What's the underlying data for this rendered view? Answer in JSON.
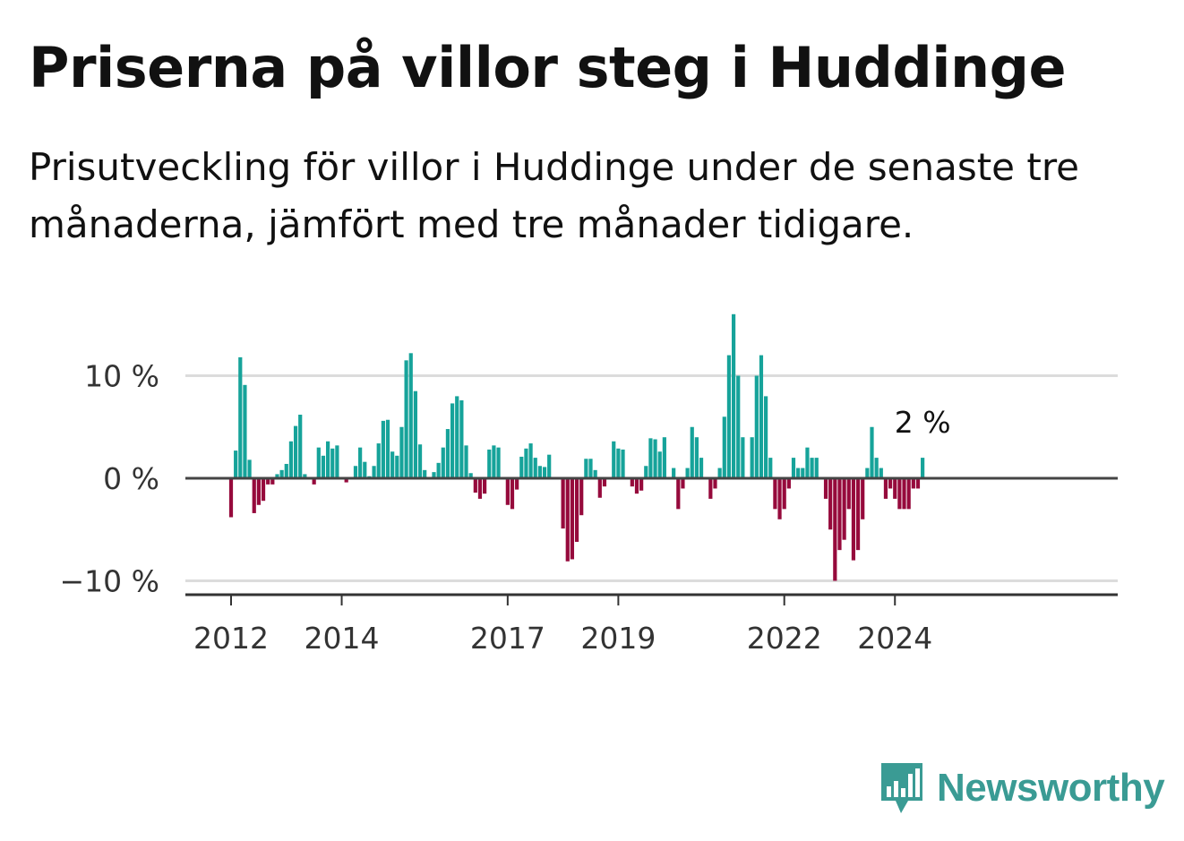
{
  "title": "Priserna på villor steg i Huddinge",
  "subtitle": "Prisutveckling för villor i Huddinge under de senaste tre månaderna, jämfört med tre månader tidigare.",
  "brand": {
    "name": "Newsworthy",
    "icon": "bar-chart-speech-bubble-icon",
    "color": "#3a9b94"
  },
  "chart_data": {
    "type": "bar",
    "unit": "%",
    "x_range": [
      "2012-01",
      "2024-03"
    ],
    "y_range": [
      -10,
      16
    ],
    "y_ticks": [
      {
        "value": 10,
        "label": "10 %"
      },
      {
        "value": 0,
        "label": "0 %"
      },
      {
        "value": -10,
        "label": "−10 %"
      }
    ],
    "x_ticks": [
      {
        "date": "2012-01",
        "label": "2012"
      },
      {
        "date": "2014-01",
        "label": "2014"
      },
      {
        "date": "2017-01",
        "label": "2017"
      },
      {
        "date": "2019-01",
        "label": "2019"
      },
      {
        "date": "2022-01",
        "label": "2022"
      },
      {
        "date": "2024-01",
        "label": "2024"
      }
    ],
    "colors": {
      "positive": "#16a39a",
      "negative": "#960a3c"
    },
    "grid": true,
    "last_value_label": "2 %",
    "values": [
      -3.8,
      2.7,
      11.8,
      9.1,
      1.8,
      -3.4,
      -2.6,
      -2.2,
      -0.6,
      -0.6,
      0.4,
      0.8,
      1.4,
      3.6,
      5.1,
      6.2,
      0.4,
      0,
      -0.6,
      3.0,
      2.2,
      3.6,
      2.9,
      3.2,
      0,
      -0.4,
      0,
      1.2,
      3.0,
      1.6,
      0.2,
      1.2,
      3.4,
      5.6,
      5.7,
      2.6,
      2.2,
      5.0,
      11.5,
      12.2,
      8.5,
      3.3,
      0.8,
      0,
      0.6,
      1.5,
      3.0,
      4.8,
      7.3,
      8.0,
      7.6,
      3.2,
      0.5,
      -1.4,
      -2.0,
      -1.5,
      2.8,
      3.2,
      3.0,
      0,
      -2.6,
      -3.0,
      -1.1,
      2.1,
      2.9,
      3.4,
      2.0,
      1.2,
      1.1,
      2.3,
      0,
      0,
      -4.9,
      -8.1,
      -7.9,
      -6.2,
      -3.6,
      1.9,
      1.9,
      0.8,
      -1.9,
      -0.8,
      0,
      3.6,
      2.9,
      2.8,
      0,
      -0.8,
      -1.5,
      -1.2,
      1.2,
      3.9,
      3.8,
      2.6,
      4.0,
      0,
      1.0,
      -3.0,
      -1.0,
      1.0,
      5.0,
      4.0,
      2.0,
      0,
      -2.0,
      -1.0,
      1.0,
      6.0,
      12.0,
      16.0,
      10.0,
      4.0,
      0,
      4.0,
      10.0,
      12.0,
      8.0,
      2.0,
      -3.0,
      -4.0,
      -3.0,
      -1.0,
      2.0,
      1.0,
      1.0,
      3.0,
      2.0,
      2.0,
      0,
      -2.0,
      -5.0,
      -10.0,
      -7.0,
      -6.0,
      -3.0,
      -8.0,
      -7.0,
      -4.0,
      1.0,
      5.0,
      2.0,
      1.0,
      -2.0,
      -1.0,
      -2.0,
      -3.0,
      -3.0,
      -3.0,
      -1.0,
      -1.0,
      2.0
    ]
  }
}
